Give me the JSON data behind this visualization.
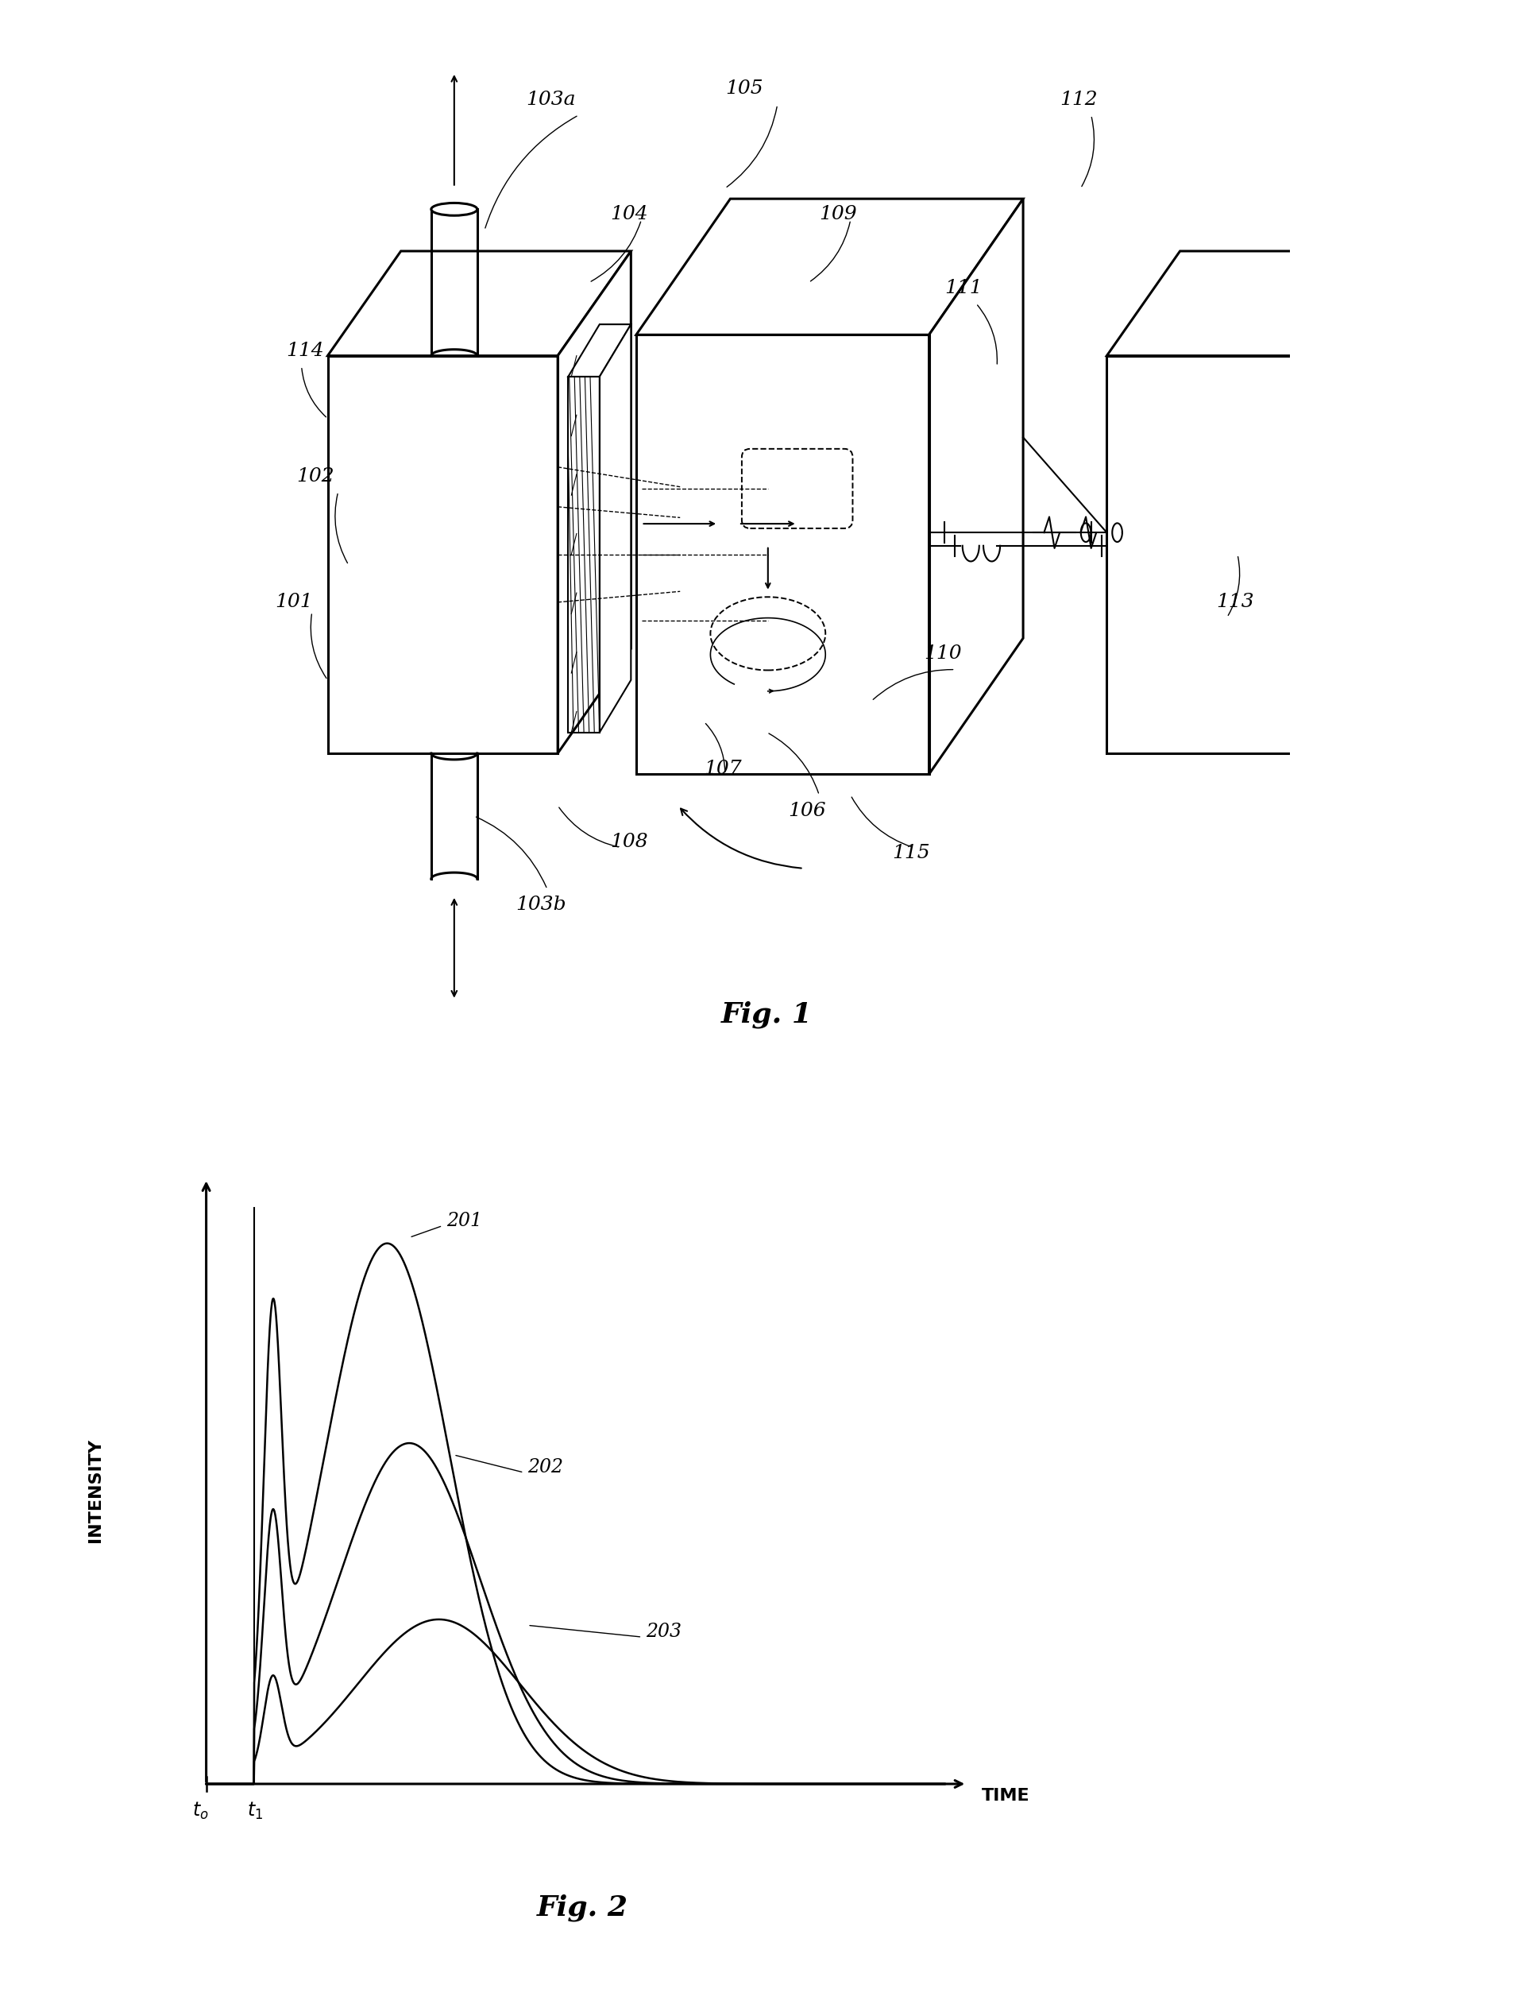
{
  "bg_color": "#ffffff",
  "fig_width": 19.31,
  "fig_height": 25.32,
  "fig1_title": "Fig. 1",
  "fig2_title": "Fig. 2",
  "fig2_ylabel": "INTENSITY",
  "fig2_xlabel": "TIME",
  "curve_labels": [
    "201",
    "202",
    "203"
  ],
  "t0_label": "t_0",
  "t1_label": "t_1",
  "label_fontsize": 18,
  "title_fontsize": 26
}
